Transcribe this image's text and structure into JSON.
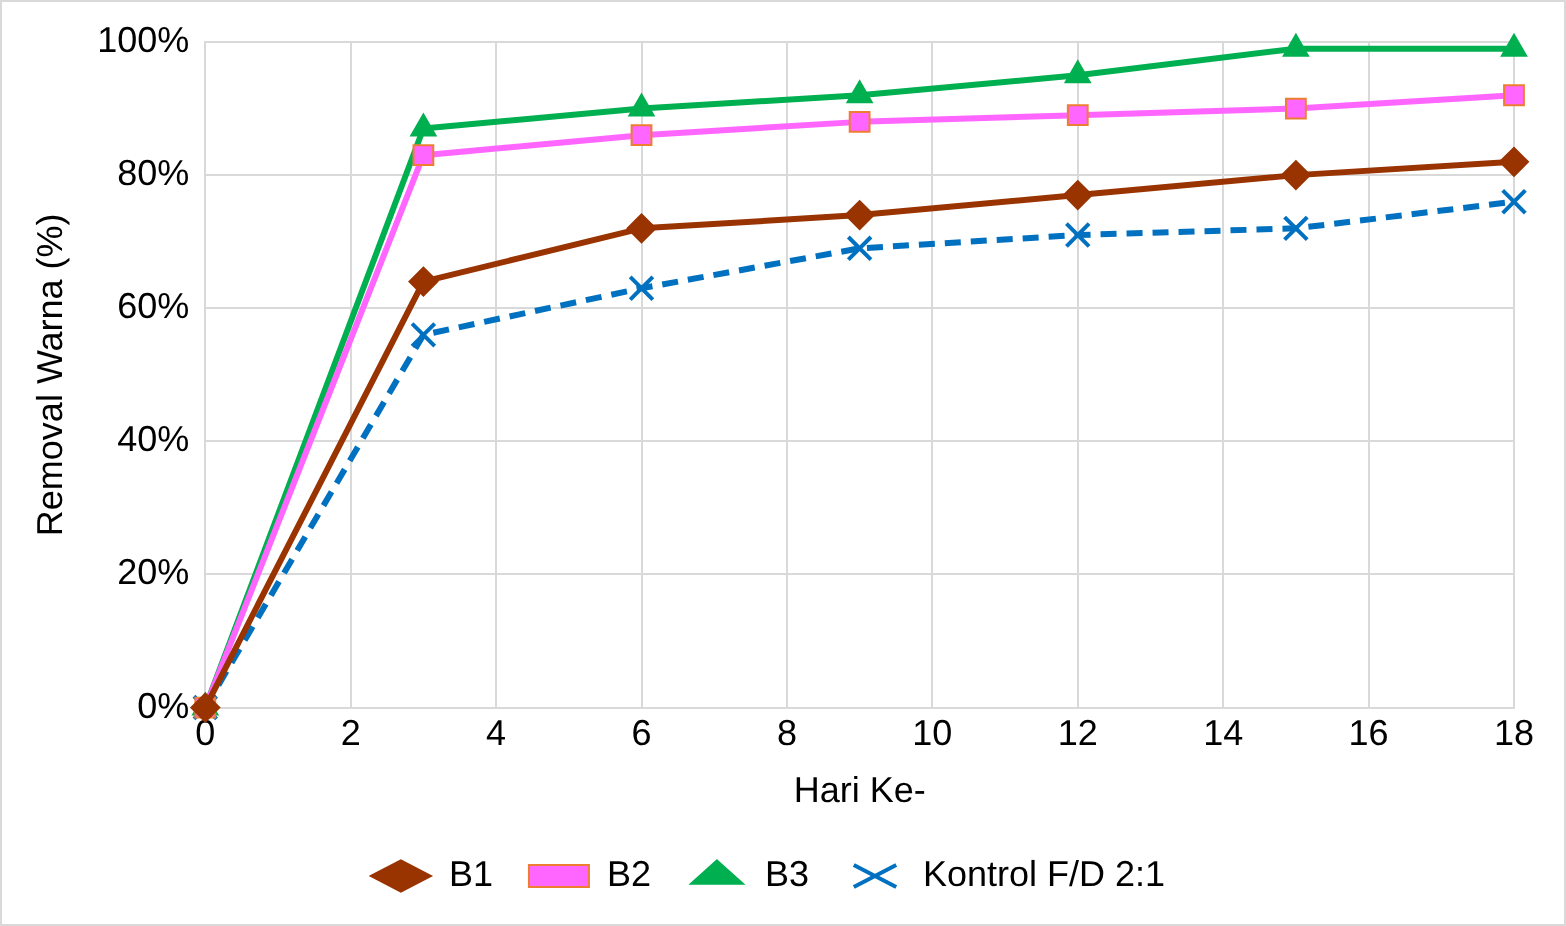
{
  "chart_data": {
    "type": "line",
    "xlabel": "Hari Ke-",
    "ylabel": "Removal Warna (%)",
    "x": [
      0,
      3,
      6,
      9,
      12,
      15,
      18
    ],
    "series": [
      {
        "name": "B1",
        "color": "#993300",
        "marker": "diamond",
        "line_style": "solid",
        "values": [
          0,
          64,
          72,
          74,
          77,
          80,
          82
        ]
      },
      {
        "name": "B2",
        "color": "#ff66ff",
        "marker": "square",
        "line_style": "solid",
        "values": [
          0,
          83,
          86,
          88,
          89,
          90,
          92
        ]
      },
      {
        "name": "B3",
        "color": "#00b050",
        "marker": "triangle",
        "line_style": "solid",
        "values": [
          0,
          87,
          90,
          92,
          95,
          99,
          99
        ]
      },
      {
        "name": "Kontrol F/D 2:1",
        "color": "#0070c0",
        "marker": "cross",
        "line_style": "dashed",
        "values": [
          0,
          56,
          63,
          69,
          71,
          72,
          76
        ]
      }
    ],
    "xlim": [
      0,
      18
    ],
    "xticks": [
      0,
      2,
      4,
      6,
      8,
      10,
      12,
      14,
      16,
      18
    ],
    "ylim": [
      0,
      100
    ],
    "yticks": [
      {
        "value": 0,
        "label": "0%"
      },
      {
        "value": 20,
        "label": "20%"
      },
      {
        "value": 40,
        "label": "40%"
      },
      {
        "value": 60,
        "label": "60%"
      },
      {
        "value": 80,
        "label": "80%"
      },
      {
        "value": 100,
        "label": "100%"
      }
    ],
    "grid": true,
    "legend": "bottom"
  }
}
